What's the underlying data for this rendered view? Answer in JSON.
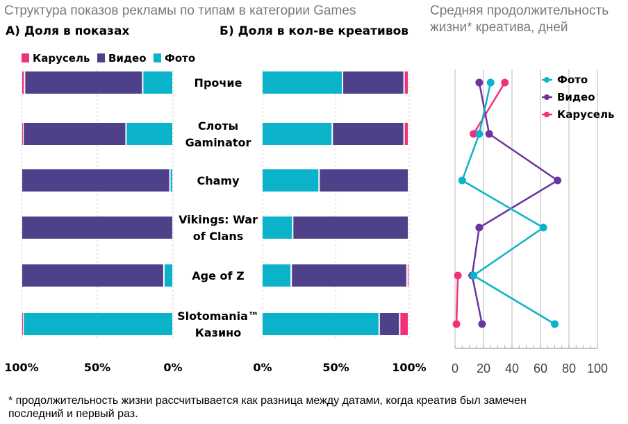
{
  "title": "Структура показов рекламы по типам в категории Games",
  "subtitle_a": "А) Доля в показах",
  "subtitle_b": "Б) Доля в кол-ве креативов",
  "subtitle_c": [
    "Средняя продолжительность",
    "жизни* креатива, дней"
  ],
  "footnote": [
    "* продолжительность жизни рассчитывается как разница между датами, когда креатив был замечен",
    "последний и первый раз."
  ],
  "colors": {
    "carousel": "#f0307a",
    "video": "#4f4189",
    "photo": "#0ab3c9",
    "video_line": "#6a35a0",
    "grid": "#d0d0d0"
  },
  "chart_data": [
    {
      "id": "impressions_share",
      "type": "bar",
      "orientation": "horizontal-stacked-reversed",
      "title": "А) Доля в показах",
      "categories": [
        "Прочие",
        "Слоты Gaminator",
        "Chamy",
        "Vikings: War of Clans",
        "Age of Z",
        "Slotomania™ Казино"
      ],
      "category_labels": [
        [
          "Прочие"
        ],
        [
          "Слоты",
          "Gaminator"
        ],
        [
          "Chamy"
        ],
        [
          "Vikings: War",
          "of Clans"
        ],
        [
          "Age of Z"
        ],
        [
          "Slotomania™",
          "Казино"
        ]
      ],
      "series": [
        {
          "name": "Фото",
          "key": "photo",
          "values": [
            20,
            31,
            2,
            0,
            6,
            99
          ]
        },
        {
          "name": "Видео",
          "key": "video",
          "values": [
            78,
            68,
            98,
            100,
            94,
            0
          ]
        },
        {
          "name": "Карусель",
          "key": "carousel",
          "values": [
            2,
            1,
            0,
            0,
            0,
            1
          ]
        }
      ],
      "legend": [
        "Карусель",
        "Видео",
        "Фото"
      ],
      "xticks": [
        "100%",
        "50%",
        "0%"
      ],
      "xlim": [
        100,
        0
      ]
    },
    {
      "id": "creatives_share",
      "type": "bar",
      "orientation": "horizontal-stacked",
      "title": "Б) Доля в кол-ве креативов",
      "categories": [
        "Прочие",
        "Слоты Gaminator",
        "Chamy",
        "Vikings: War of Clans",
        "Age of Z",
        "Slotomania™ Казино"
      ],
      "series": [
        {
          "name": "Фото",
          "key": "photo",
          "values": [
            55,
            48,
            39,
            21,
            20,
            80
          ]
        },
        {
          "name": "Видео",
          "key": "video",
          "values": [
            42,
            49,
            61,
            79,
            79,
            14
          ]
        },
        {
          "name": "Карусель",
          "key": "carousel",
          "values": [
            3,
            3,
            0,
            0,
            1,
            6
          ]
        }
      ],
      "xticks": [
        "0%",
        "50%",
        "100%"
      ],
      "xlim": [
        0,
        100
      ]
    },
    {
      "id": "creative_lifetime",
      "type": "line",
      "title": "Средняя продолжительность жизни* креатива, дней",
      "categories": [
        "Прочие",
        "Слоты Gaminator",
        "Chamy",
        "Vikings: War of Clans",
        "Age of Z",
        "Slotomania™ Казино"
      ],
      "series": [
        {
          "name": "Фото",
          "key": "photo",
          "values": [
            25,
            17,
            5,
            62,
            13,
            70
          ]
        },
        {
          "name": "Видео",
          "key": "video",
          "values": [
            17,
            24,
            72,
            17,
            12,
            19
          ]
        },
        {
          "name": "Карусель",
          "key": "carousel",
          "values": [
            35,
            13,
            null,
            null,
            2,
            1
          ]
        }
      ],
      "legend": [
        "Фото",
        "Видео",
        "Карусель"
      ],
      "xticks": [
        "0",
        "20",
        "40",
        "60",
        "80",
        "100"
      ],
      "xlim": [
        0,
        100
      ]
    }
  ]
}
